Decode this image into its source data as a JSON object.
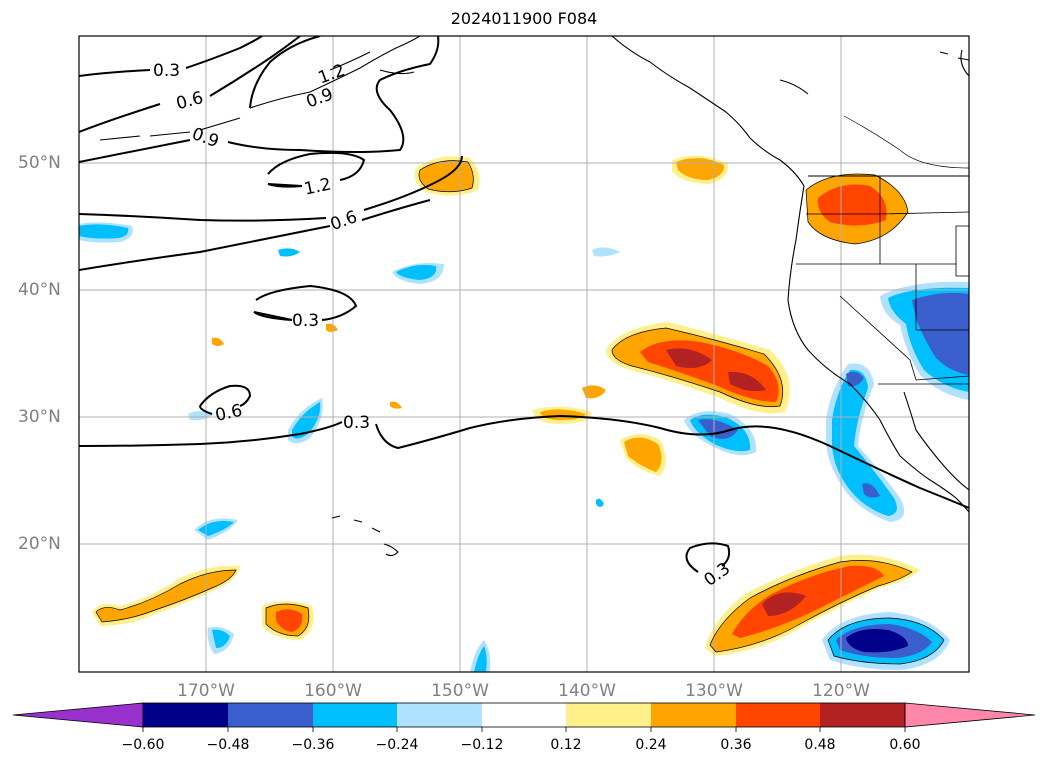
{
  "title": "2024011900 F084",
  "lat_labels": [
    "50°N",
    "40°N",
    "30°N",
    "20°N"
  ],
  "lon_labels": [
    "170°W",
    "160°W",
    "150°W",
    "140°W",
    "130°W",
    "120°W"
  ],
  "contour_labels": [
    "0.3",
    "0.6",
    "1.2",
    "0.9",
    "0.9",
    "1.2",
    "0.6",
    "0.3",
    "0.6",
    "0.3",
    "0.3"
  ],
  "colorbar": {
    "ticks": [
      "−0.60",
      "−0.48",
      "−0.36",
      "−0.24",
      "−0.12",
      "0.12",
      "0.24",
      "0.36",
      "0.48",
      "0.60"
    ],
    "colors": [
      "#9932cc",
      "#00008b",
      "#3a5fcd",
      "#00bfff",
      "#b0e2ff",
      "#ffffff",
      "#fff08c",
      "#ffa500",
      "#ff4500",
      "#b22222",
      "#ff88aa"
    ]
  },
  "map_extent": {
    "lon_min": -180,
    "lon_max": -110,
    "lat_min": 10,
    "lat_max": 60
  }
}
